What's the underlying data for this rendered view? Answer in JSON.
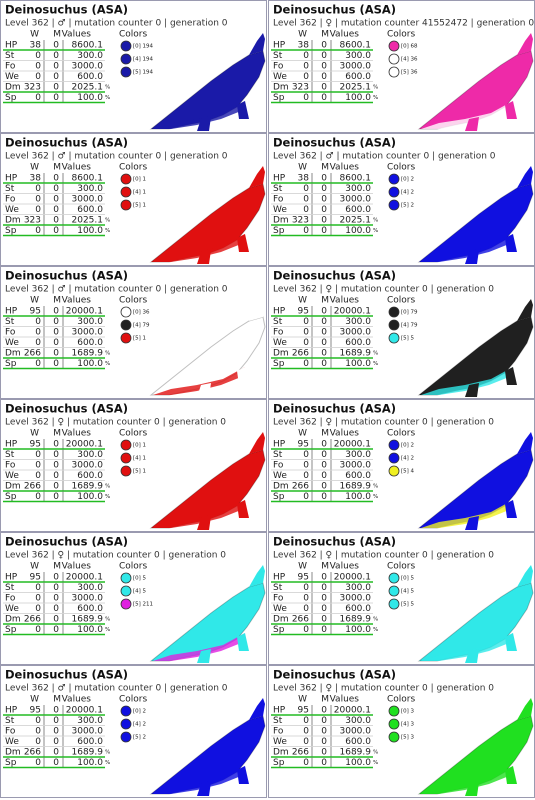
{
  "header": {
    "columns": [
      "W",
      "M",
      "Values"
    ],
    "colors_label": "Colors"
  },
  "cards": [
    {
      "title": "Deinosuchus (ASA)",
      "info": "Level 362 | ♂ | mutation counter 0 | generation 0",
      "stats": [
        [
          "HP",
          "38",
          "0",
          "8600.1",
          ""
        ],
        [
          "St",
          "0",
          "0",
          "300.0",
          ""
        ],
        [
          "Fo",
          "0",
          "0",
          "3000.0",
          ""
        ],
        [
          "We",
          "0",
          "0",
          "600.0",
          ""
        ],
        [
          "Dm",
          "323",
          "0",
          "2025.1",
          "%"
        ],
        [
          "Sp",
          "0",
          "0",
          "100.0",
          "%"
        ]
      ],
      "colors": [
        {
          "label": "[0] 194",
          "color": "#1a1aa8"
        },
        {
          "label": "[4] 194",
          "color": "#1a1aa8"
        },
        {
          "label": "[5] 194",
          "color": "#1a1aa8"
        }
      ]
    },
    {
      "title": "Deinosuchus (ASA)",
      "info": "Level 362 | ♀ | mutation counter 41552472 | generation 0",
      "stats": [
        [
          "HP",
          "38",
          "0",
          "8600.1",
          ""
        ],
        [
          "St",
          "0",
          "0",
          "300.0",
          ""
        ],
        [
          "Fo",
          "0",
          "0",
          "3000.0",
          ""
        ],
        [
          "We",
          "0",
          "0",
          "600.0",
          ""
        ],
        [
          "Dm",
          "323",
          "0",
          "2025.1",
          "%"
        ],
        [
          "Sp",
          "0",
          "0",
          "100.0",
          "%"
        ]
      ],
      "colors": [
        {
          "label": "[0] 68",
          "color": "#ee2aa8"
        },
        {
          "label": "[4] 36",
          "color": "#ffffff"
        },
        {
          "label": "[5] 36",
          "color": "#ffffff"
        }
      ]
    },
    {
      "title": "Deinosuchus (ASA)",
      "info": "Level 362 | ♂ | mutation counter 0 | generation 0",
      "stats": [
        [
          "HP",
          "38",
          "0",
          "8600.1",
          ""
        ],
        [
          "St",
          "0",
          "0",
          "300.0",
          ""
        ],
        [
          "Fo",
          "0",
          "0",
          "3000.0",
          ""
        ],
        [
          "We",
          "0",
          "0",
          "600.0",
          ""
        ],
        [
          "Dm",
          "323",
          "0",
          "2025.1",
          "%"
        ],
        [
          "Sp",
          "0",
          "0",
          "100.0",
          "%"
        ]
      ],
      "colors": [
        {
          "label": "[0] 1",
          "color": "#e01010"
        },
        {
          "label": "[4] 1",
          "color": "#e01010"
        },
        {
          "label": "[5] 1",
          "color": "#e01010"
        }
      ]
    },
    {
      "title": "Deinosuchus (ASA)",
      "info": "Level 362 | ♂ | mutation counter 0 | generation 0",
      "stats": [
        [
          "HP",
          "38",
          "0",
          "8600.1",
          ""
        ],
        [
          "St",
          "0",
          "0",
          "300.0",
          ""
        ],
        [
          "Fo",
          "0",
          "0",
          "3000.0",
          ""
        ],
        [
          "We",
          "0",
          "0",
          "600.0",
          ""
        ],
        [
          "Dm",
          "323",
          "0",
          "2025.1",
          "%"
        ],
        [
          "Sp",
          "0",
          "0",
          "100.0",
          "%"
        ]
      ],
      "colors": [
        {
          "label": "[0] 2",
          "color": "#1010e0"
        },
        {
          "label": "[4] 2",
          "color": "#1010e0"
        },
        {
          "label": "[5] 2",
          "color": "#1010e0"
        }
      ]
    },
    {
      "title": "Deinosuchus (ASA)",
      "info": "Level 362 | ♂ | mutation counter 0 | generation 0",
      "stats": [
        [
          "HP",
          "95",
          "0",
          "20000.1",
          ""
        ],
        [
          "St",
          "0",
          "0",
          "300.0",
          ""
        ],
        [
          "Fo",
          "0",
          "0",
          "3000.0",
          ""
        ],
        [
          "We",
          "0",
          "0",
          "600.0",
          ""
        ],
        [
          "Dm",
          "266",
          "0",
          "1689.9",
          "%"
        ],
        [
          "Sp",
          "0",
          "0",
          "100.0",
          "%"
        ]
      ],
      "colors": [
        {
          "label": "[0] 36",
          "color": "#ffffff"
        },
        {
          "label": "[4] 79",
          "color": "#202020"
        },
        {
          "label": "[5] 1",
          "color": "#e01010"
        }
      ]
    },
    {
      "title": "Deinosuchus (ASA)",
      "info": "Level 362 | ♀ | mutation counter 0 | generation 0",
      "stats": [
        [
          "HP",
          "95",
          "0",
          "20000.1",
          ""
        ],
        [
          "St",
          "0",
          "0",
          "300.0",
          ""
        ],
        [
          "Fo",
          "0",
          "0",
          "3000.0",
          ""
        ],
        [
          "We",
          "0",
          "0",
          "600.0",
          ""
        ],
        [
          "Dm",
          "266",
          "0",
          "1689.9",
          "%"
        ],
        [
          "Sp",
          "0",
          "0",
          "100.0",
          "%"
        ]
      ],
      "colors": [
        {
          "label": "[0] 79",
          "color": "#202020"
        },
        {
          "label": "[4] 79",
          "color": "#202020"
        },
        {
          "label": "[5] 5",
          "color": "#30e8e8"
        }
      ]
    },
    {
      "title": "Deinosuchus (ASA)",
      "info": "Level 362 | ♀ | mutation counter 0 | generation 0",
      "stats": [
        [
          "HP",
          "95",
          "0",
          "20000.1",
          ""
        ],
        [
          "St",
          "0",
          "0",
          "300.0",
          ""
        ],
        [
          "Fo",
          "0",
          "0",
          "3000.0",
          ""
        ],
        [
          "We",
          "0",
          "0",
          "600.0",
          ""
        ],
        [
          "Dm",
          "266",
          "0",
          "1689.9",
          "%"
        ],
        [
          "Sp",
          "0",
          "0",
          "100.0",
          "%"
        ]
      ],
      "colors": [
        {
          "label": "[0] 1",
          "color": "#e01010"
        },
        {
          "label": "[4] 1",
          "color": "#e01010"
        },
        {
          "label": "[5] 1",
          "color": "#e01010"
        }
      ]
    },
    {
      "title": "Deinosuchus (ASA)",
      "info": "Level 362 | ♀ | mutation counter 0 | generation 0",
      "stats": [
        [
          "HP",
          "95",
          "0",
          "20000.1",
          ""
        ],
        [
          "St",
          "0",
          "0",
          "300.0",
          ""
        ],
        [
          "Fo",
          "0",
          "0",
          "3000.0",
          ""
        ],
        [
          "We",
          "0",
          "0",
          "600.0",
          ""
        ],
        [
          "Dm",
          "266",
          "0",
          "1689.9",
          "%"
        ],
        [
          "Sp",
          "0",
          "0",
          "100.0",
          "%"
        ]
      ],
      "colors": [
        {
          "label": "[0] 2",
          "color": "#1010e0"
        },
        {
          "label": "[4] 2",
          "color": "#1010e0"
        },
        {
          "label": "[5] 4",
          "color": "#f0f020"
        }
      ]
    },
    {
      "title": "Deinosuchus (ASA)",
      "info": "Level 362 | ♀ | mutation counter 0 | generation 0",
      "stats": [
        [
          "HP",
          "95",
          "0",
          "20000.1",
          ""
        ],
        [
          "St",
          "0",
          "0",
          "300.0",
          ""
        ],
        [
          "Fo",
          "0",
          "0",
          "3000.0",
          ""
        ],
        [
          "We",
          "0",
          "0",
          "600.0",
          ""
        ],
        [
          "Dm",
          "266",
          "0",
          "1689.9",
          "%"
        ],
        [
          "Sp",
          "0",
          "0",
          "100.0",
          "%"
        ]
      ],
      "colors": [
        {
          "label": "[0] 5",
          "color": "#30e8e8"
        },
        {
          "label": "[4] 5",
          "color": "#30e8e8"
        },
        {
          "label": "[5] 211",
          "color": "#e020e0"
        }
      ]
    },
    {
      "title": "Deinosuchus (ASA)",
      "info": "Level 362 | ♀ | mutation counter 0 | generation 0",
      "stats": [
        [
          "HP",
          "95",
          "0",
          "20000.1",
          ""
        ],
        [
          "St",
          "0",
          "0",
          "300.0",
          ""
        ],
        [
          "Fo",
          "0",
          "0",
          "3000.0",
          ""
        ],
        [
          "We",
          "0",
          "0",
          "600.0",
          ""
        ],
        [
          "Dm",
          "266",
          "0",
          "1689.9",
          "%"
        ],
        [
          "Sp",
          "0",
          "0",
          "100.0",
          "%"
        ]
      ],
      "colors": [
        {
          "label": "[0] 5",
          "color": "#30e8e8"
        },
        {
          "label": "[4] 5",
          "color": "#30e8e8"
        },
        {
          "label": "[5] 5",
          "color": "#30e8e8"
        }
      ]
    },
    {
      "title": "Deinosuchus (ASA)",
      "info": "Level 362 | ♂ | mutation counter 0 | generation 0",
      "stats": [
        [
          "HP",
          "95",
          "0",
          "20000.1",
          ""
        ],
        [
          "St",
          "0",
          "0",
          "300.0",
          ""
        ],
        [
          "Fo",
          "0",
          "0",
          "3000.0",
          ""
        ],
        [
          "We",
          "0",
          "0",
          "600.0",
          ""
        ],
        [
          "Dm",
          "266",
          "0",
          "1689.9",
          "%"
        ],
        [
          "Sp",
          "0",
          "0",
          "100.0",
          "%"
        ]
      ],
      "colors": [
        {
          "label": "[0] 2",
          "color": "#1010e0"
        },
        {
          "label": "[4] 2",
          "color": "#1010e0"
        },
        {
          "label": "[5] 2",
          "color": "#1010e0"
        }
      ]
    },
    {
      "title": "Deinosuchus (ASA)",
      "info": "Level 362 | ♀ | mutation counter 0 | generation 0",
      "stats": [
        [
          "HP",
          "95",
          "0",
          "20000.1",
          ""
        ],
        [
          "St",
          "0",
          "0",
          "300.0",
          ""
        ],
        [
          "Fo",
          "0",
          "0",
          "3000.0",
          ""
        ],
        [
          "We",
          "0",
          "0",
          "600.0",
          ""
        ],
        [
          "Dm",
          "266",
          "0",
          "1689.9",
          "%"
        ],
        [
          "Sp",
          "0",
          "0",
          "100.0",
          "%"
        ]
      ],
      "colors": [
        {
          "label": "[0] 3",
          "color": "#20e020"
        },
        {
          "label": "[4] 3",
          "color": "#20e020"
        },
        {
          "label": "[5] 3",
          "color": "#20e020"
        }
      ]
    }
  ]
}
